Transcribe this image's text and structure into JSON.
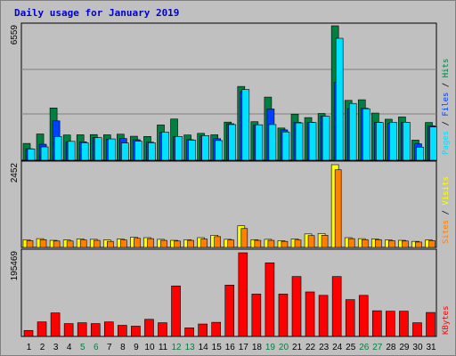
{
  "title": "Daily usage for January 2019",
  "colors": {
    "hits": "#008040",
    "files": "#0040ff",
    "pages": "#00e0ff",
    "visits": "#ffff00",
    "sites": "#ff8000",
    "kbytes": "#ff0000",
    "weekend_label": "#008040",
    "weekday_label": "#000000"
  },
  "chart_data": [
    {
      "type": "bar",
      "panel": "hits-files-pages",
      "ymax_label": "6559",
      "ymax": 6559,
      "legend": [
        {
          "name": "Pages",
          "color": "#00e0ff"
        },
        {
          "name": "Files",
          "color": "#0040ff"
        },
        {
          "name": "Hits",
          "color": "#008040"
        }
      ],
      "separator": " / ",
      "categories": [
        "1",
        "2",
        "3",
        "4",
        "5",
        "6",
        "7",
        "8",
        "9",
        "10",
        "11",
        "12",
        "13",
        "14",
        "15",
        "16",
        "17",
        "18",
        "19",
        "20",
        "21",
        "22",
        "23",
        "24",
        "25",
        "26",
        "27",
        "28",
        "29",
        "30",
        "31"
      ],
      "weekend_days": [
        "5",
        "6",
        "12",
        "13",
        "19",
        "20",
        "26",
        "27"
      ],
      "series": [
        {
          "name": "Hits",
          "values": [
            820,
            1280,
            2550,
            1230,
            1240,
            1250,
            1240,
            1270,
            1170,
            1160,
            1720,
            2010,
            1230,
            1310,
            1240,
            1860,
            3600,
            1880,
            3080,
            1570,
            2250,
            2080,
            2280,
            6559,
            2920,
            2950,
            2300,
            2000,
            2110,
            980,
            1840
          ]
        },
        {
          "name": "Files",
          "values": [
            560,
            780,
            1920,
            900,
            900,
            1100,
            1020,
            1060,
            1000,
            880,
            1350,
            1150,
            1000,
            1180,
            1050,
            1780,
            3350,
            1720,
            2500,
            1480,
            1850,
            1850,
            2150,
            3800,
            2520,
            2540,
            1850,
            1800,
            1850,
            800,
            1680
          ]
        },
        {
          "name": "Pages",
          "values": [
            550,
            650,
            1160,
            920,
            850,
            1100,
            1040,
            840,
            930,
            850,
            1370,
            1160,
            980,
            1200,
            960,
            1740,
            3450,
            1730,
            1740,
            1380,
            1820,
            1840,
            2150,
            5950,
            2770,
            2510,
            1840,
            1850,
            1850,
            640,
            1620
          ]
        }
      ]
    },
    {
      "type": "bar",
      "panel": "visits-sites",
      "ymax_label": "2452",
      "ymax": 2452,
      "legend": [
        {
          "name": "Sites",
          "color": "#ff8000"
        },
        {
          "name": "Visits",
          "color": "#ffff00"
        }
      ],
      "separator": " / ",
      "series": [
        {
          "name": "Visits",
          "values": [
            230,
            260,
            210,
            220,
            250,
            240,
            220,
            250,
            300,
            290,
            240,
            210,
            230,
            290,
            360,
            240,
            640,
            230,
            240,
            200,
            250,
            400,
            410,
            2452,
            290,
            260,
            250,
            220,
            210,
            180,
            220
          ]
        },
        {
          "name": "Sites",
          "values": [
            200,
            230,
            190,
            190,
            220,
            210,
            180,
            220,
            270,
            260,
            210,
            190,
            210,
            250,
            320,
            220,
            560,
            210,
            210,
            180,
            220,
            350,
            360,
            2300,
            260,
            230,
            230,
            200,
            190,
            160,
            200
          ]
        }
      ]
    },
    {
      "type": "bar",
      "panel": "kbytes",
      "ymax_label": "195469",
      "ymax": 195469,
      "legend": [
        {
          "name": "KBytes",
          "color": "#ff0000"
        }
      ],
      "series": [
        {
          "name": "KBytes",
          "values": [
            14000,
            34000,
            55000,
            30000,
            32000,
            30000,
            34000,
            26000,
            24000,
            40000,
            32000,
            118000,
            20000,
            29000,
            33000,
            120000,
            195469,
            99000,
            172000,
            99000,
            140000,
            104000,
            96000,
            140000,
            86000,
            96000,
            60000,
            59000,
            59000,
            32000,
            56000
          ]
        }
      ]
    }
  ]
}
